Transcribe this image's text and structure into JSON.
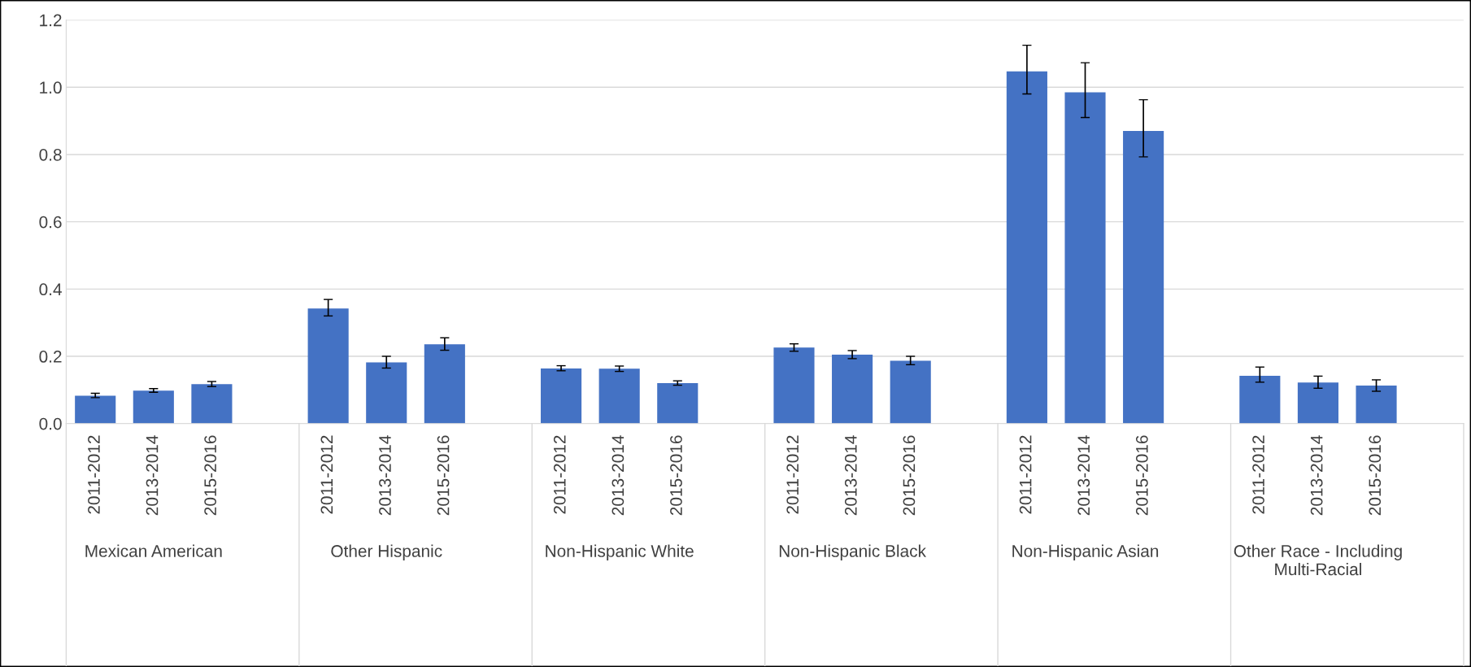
{
  "chart_data": {
    "type": "bar",
    "categories": [
      "2011-2012",
      "2013-2014",
      "2015-2016",
      null,
      "2011-2012",
      "2013-2014",
      "2015-2016",
      null,
      "2011-2012",
      "2013-2014",
      "2015-2016",
      null,
      "2011-2012",
      "2013-2014",
      "2015-2016",
      null,
      "2011-2012",
      "2013-2014",
      "2015-2016",
      null,
      "2011-2012",
      "2013-2014",
      "2015-2016",
      null
    ],
    "values": [
      0.083,
      0.098,
      0.117,
      null,
      0.342,
      0.182,
      0.236,
      null,
      0.164,
      0.163,
      0.12,
      null,
      0.226,
      0.205,
      0.187,
      null,
      1.047,
      0.985,
      0.87,
      null,
      0.142,
      0.122,
      0.113,
      null
    ],
    "errors": [
      [
        0.077,
        0.09
      ],
      [
        0.093,
        0.104
      ],
      [
        0.11,
        0.125
      ],
      null,
      [
        0.32,
        0.369
      ],
      [
        0.165,
        0.2
      ],
      [
        0.218,
        0.255
      ],
      null,
      [
        0.157,
        0.172
      ],
      [
        0.155,
        0.171
      ],
      [
        0.114,
        0.127
      ],
      null,
      [
        0.215,
        0.237
      ],
      [
        0.193,
        0.217
      ],
      [
        0.175,
        0.2
      ],
      null,
      [
        0.98,
        1.125
      ],
      [
        0.91,
        1.073
      ],
      [
        0.793,
        0.963
      ],
      null,
      [
        0.123,
        0.168
      ],
      [
        0.105,
        0.141
      ],
      [
        0.096,
        0.13
      ],
      null
    ],
    "color": "#4472c4",
    "annotations": [
      "Mexican American",
      "Other Hispanic",
      "Non-Hispanic White",
      "Non-Hispanic Black",
      "Non-Hispanic Asian",
      "Other Race - Including\nMulti-Racial"
    ],
    "ylim": [
      0,
      1.2
    ],
    "yticks": [
      {
        "value": 0,
        "label": "0.0"
      },
      {
        "value": 0.2,
        "label": "0.2"
      },
      {
        "value": 0.4,
        "label": "0.4"
      },
      {
        "value": 0.6,
        "label": "0.6"
      },
      {
        "value": 0.8,
        "label": "0.8"
      },
      {
        "value": 1.0,
        "label": "1.0"
      },
      {
        "value": 1.2,
        "label": "1.2"
      }
    ],
    "grid": "y"
  }
}
